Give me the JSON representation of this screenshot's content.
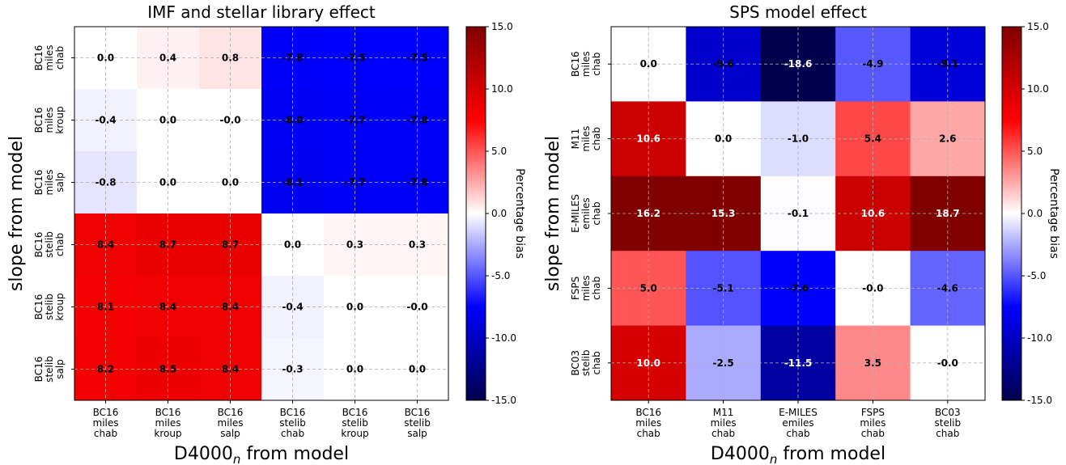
{
  "chart_data": [
    {
      "type": "heatmap",
      "title": "IMF and stellar library effect",
      "xlabel": "D4000",
      "xlabel_sub": "n",
      "xlabel_suffix": " from model",
      "ylabel": "slope from model",
      "x_categories": [
        [
          "BC16",
          "miles",
          "chab"
        ],
        [
          "BC16",
          "miles",
          "kroup"
        ],
        [
          "BC16",
          "miles",
          "salp"
        ],
        [
          "BC16",
          "stelib",
          "chab"
        ],
        [
          "BC16",
          "stelib",
          "kroup"
        ],
        [
          "BC16",
          "stelib",
          "salp"
        ]
      ],
      "y_categories": [
        [
          "BC16",
          "miles",
          "chab"
        ],
        [
          "BC16",
          "miles",
          "kroup"
        ],
        [
          "BC16",
          "miles",
          "salp"
        ],
        [
          "BC16",
          "stelib",
          "chab"
        ],
        [
          "BC16",
          "stelib",
          "kroup"
        ],
        [
          "BC16",
          "stelib",
          "salp"
        ]
      ],
      "values": [
        [
          0.0,
          0.4,
          0.8,
          -7.8,
          -7.5,
          -7.5
        ],
        [
          -0.4,
          0.0,
          -0.0,
          -8.0,
          -7.7,
          -7.8
        ],
        [
          -0.8,
          0.0,
          0.0,
          -8.1,
          -7.7,
          -7.8
        ],
        [
          8.4,
          8.7,
          8.7,
          0.0,
          0.3,
          0.3
        ],
        [
          8.1,
          8.4,
          8.4,
          -0.4,
          0.0,
          -0.0
        ],
        [
          8.2,
          8.5,
          8.4,
          -0.3,
          0.0,
          0.0
        ]
      ],
      "labels": [
        [
          "0.0",
          "0.4",
          "0.8",
          "-7.8",
          "-7.5",
          "-7.5"
        ],
        [
          "-0.4",
          "0.0",
          "-0.0",
          "-8.0",
          "-7.7",
          "-7.8"
        ],
        [
          "-0.8",
          "0.0",
          "0.0",
          "-8.1",
          "-7.7",
          "-7.8"
        ],
        [
          "8.4",
          "8.7",
          "8.7",
          "0.0",
          "0.3",
          "0.3"
        ],
        [
          "8.1",
          "8.4",
          "8.4",
          "-0.4",
          "0.0",
          "-0.0"
        ],
        [
          "8.2",
          "8.5",
          "8.4",
          "-0.3",
          "0.0",
          "0.0"
        ]
      ],
      "vlim": [
        -15,
        15
      ],
      "colormap": "seismic",
      "colorbar_label": "Percentage bias",
      "colorbar_ticks": [
        15,
        10,
        5,
        0,
        -5,
        -10,
        -15
      ],
      "colorbar_tick_labels": [
        "15.0",
        "10.0",
        "5.0",
        "0.0",
        "-5.0",
        "-10.0",
        "-15.0"
      ],
      "grid": true
    },
    {
      "type": "heatmap",
      "title": "SPS model effect",
      "xlabel": "D4000",
      "xlabel_sub": "n",
      "xlabel_suffix": " from model",
      "ylabel": "slope from model",
      "x_categories": [
        [
          "BC16",
          "miles",
          "chab"
        ],
        [
          "M11",
          "miles",
          "chab"
        ],
        [
          "E-MILES",
          "emiles",
          "chab"
        ],
        [
          "FSPS",
          "miles",
          "chab"
        ],
        [
          "BC03",
          "stelib",
          "chab"
        ]
      ],
      "y_categories": [
        [
          "BC16",
          "miles",
          "chab"
        ],
        [
          "M11",
          "miles",
          "chab"
        ],
        [
          "E-MILES",
          "emiles",
          "chab"
        ],
        [
          "FSPS",
          "miles",
          "chab"
        ],
        [
          "BC03",
          "stelib",
          "chab"
        ]
      ],
      "values": [
        [
          0.0,
          -9.6,
          -18.6,
          -4.9,
          -9.1
        ],
        [
          10.6,
          0.0,
          -1.0,
          5.4,
          2.6
        ],
        [
          16.2,
          15.3,
          -0.1,
          10.6,
          18.7
        ],
        [
          5.0,
          -5.1,
          -7.6,
          -0.0,
          -4.6
        ],
        [
          10.0,
          -2.5,
          -11.5,
          3.5,
          -0.0
        ]
      ],
      "labels": [
        [
          "0.0",
          "-9.6",
          "-18.6",
          "-4.9",
          "-9.1"
        ],
        [
          "10.6",
          "0.0",
          "-1.0",
          "5.4",
          "2.6"
        ],
        [
          "16.2",
          "15.3",
          "-0.1",
          "10.6",
          "18.7"
        ],
        [
          "5.0",
          "-5.1",
          "-7.6",
          "-0.0",
          "-4.6"
        ],
        [
          "10.0",
          "-2.5",
          "-11.5",
          "3.5",
          "-0.0"
        ]
      ],
      "vlim": [
        -15,
        15
      ],
      "colormap": "seismic",
      "colorbar_label": "Percentage bias",
      "colorbar_ticks": [
        15,
        10,
        5,
        0,
        -5,
        -10,
        -15
      ],
      "colorbar_tick_labels": [
        "15.0",
        "10.0",
        "5.0",
        "0.0",
        "-5.0",
        "-10.0",
        "-15.0"
      ],
      "grid": true
    }
  ]
}
